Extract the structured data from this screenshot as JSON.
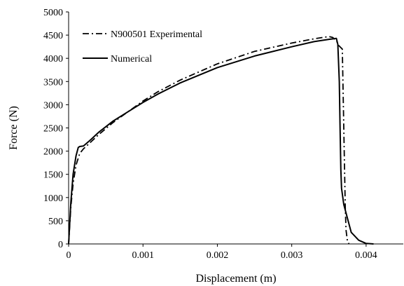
{
  "chart_data": {
    "type": "line",
    "title": "",
    "xlabel": "Displacement (m)",
    "ylabel": "Force (N)",
    "xlim": [
      0,
      0.0045
    ],
    "ylim": [
      0,
      5000
    ],
    "xticks": [
      0,
      0.001,
      0.002,
      0.003,
      0.004
    ],
    "xtick_labels": [
      "0",
      "0.001",
      "0.002",
      "0.003",
      "0.004"
    ],
    "yticks": [
      0,
      500,
      1000,
      1500,
      2000,
      2500,
      3000,
      3500,
      4000,
      4500,
      5000
    ],
    "ytick_labels": [
      "0",
      "500",
      "1000",
      "1500",
      "2000",
      "2500",
      "3000",
      "3500",
      "4000",
      "4500",
      "5000"
    ],
    "grid": false,
    "legend_position": "top-left",
    "series": [
      {
        "name": "N900501 Experimental",
        "style": "dash-dot",
        "color": "#000000",
        "x": [
          0,
          3e-05,
          6e-05,
          0.0001,
          0.00015,
          0.0002,
          0.0003,
          0.0004,
          0.0006,
          0.0008,
          0.001,
          0.0012,
          0.0015,
          0.002,
          0.0025,
          0.003,
          0.0033,
          0.0035,
          0.00355,
          0.0036,
          0.00363,
          0.00368,
          0.0037,
          0.00372,
          0.00373,
          0.00375,
          0.00377
        ],
        "y": [
          0,
          800,
          1300,
          1700,
          1950,
          2050,
          2200,
          2350,
          2620,
          2850,
          3080,
          3280,
          3530,
          3880,
          4150,
          4330,
          4420,
          4470,
          4450,
          4380,
          4280,
          4200,
          2500,
          800,
          300,
          50,
          0
        ]
      },
      {
        "name": "Numerical",
        "style": "solid",
        "color": "#000000",
        "x": [
          0,
          3e-05,
          6e-05,
          0.0001,
          0.00013,
          0.00015,
          0.0002,
          0.0003,
          0.0004,
          0.0006,
          0.0008,
          0.001,
          0.0012,
          0.0015,
          0.002,
          0.0025,
          0.003,
          0.0033,
          0.0035,
          0.0036,
          0.00362,
          0.00364,
          0.00365,
          0.00366,
          0.00367,
          0.0037,
          0.00375,
          0.0038,
          0.0039,
          0.004,
          0.0041
        ],
        "y": [
          0,
          900,
          1500,
          1900,
          2080,
          2100,
          2110,
          2250,
          2400,
          2650,
          2850,
          3050,
          3230,
          3470,
          3800,
          4050,
          4250,
          4360,
          4410,
          4430,
          4300,
          3500,
          2500,
          1600,
          1200,
          850,
          550,
          250,
          80,
          10,
          0
        ]
      }
    ]
  }
}
